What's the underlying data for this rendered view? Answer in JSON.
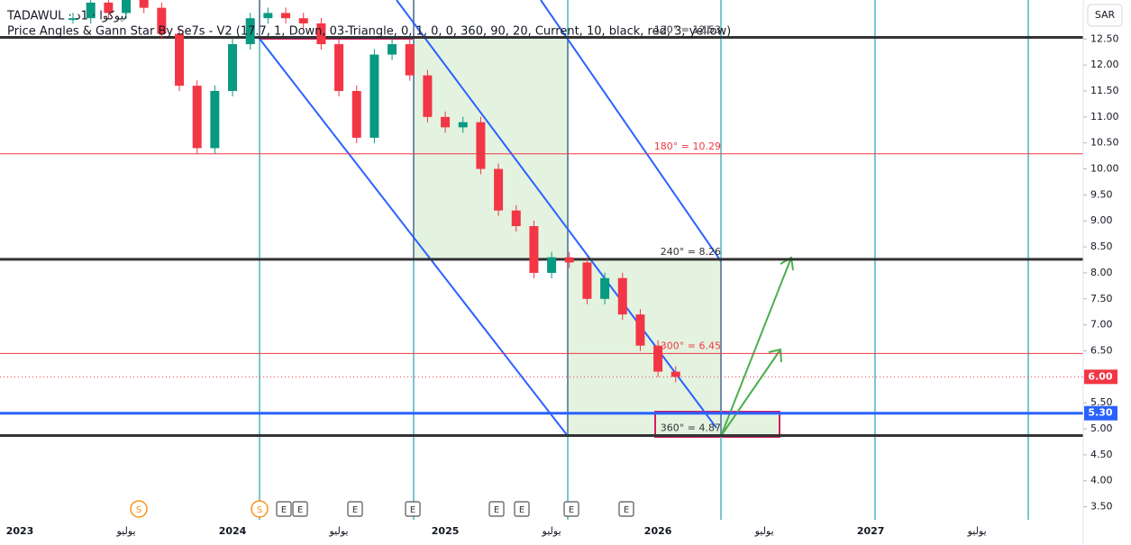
{
  "header": {
    "symbol": "TADAWUL · نيوكوا · 1د",
    "indicator": "Price Angles & Gann Star By Se7s - V2 (17.7, 1, Down, 03-Triangle, 0, 1, 0, 0, 360, 90, 20, Current, 10, black, red, 3, yellow)",
    "currency": "SAR"
  },
  "chart_data": {
    "type": "candlestick",
    "categories": [
      "2023",
      null,
      null,
      null,
      null,
      null,
      "يوليو",
      null,
      null,
      null,
      null,
      null,
      "2024",
      null,
      null,
      null,
      null,
      null,
      "يوليو",
      null,
      null,
      null,
      null,
      null,
      "2025",
      null,
      null,
      null,
      null,
      null,
      "يوليو",
      null,
      null,
      null,
      null,
      null,
      "2026",
      null,
      null,
      null,
      null,
      null,
      "يوليو",
      null,
      null,
      null,
      null,
      null,
      "2027",
      null,
      null,
      null,
      null,
      null,
      "يوليو",
      null,
      null,
      null,
      null,
      null
    ],
    "series": [
      {
        "name": "TADAWUL",
        "up_color": "#089981",
        "down_color": "#f23645",
        "values": [
          null,
          null,
          null,
          12.9,
          13.2,
          13.0,
          13.3,
          13.1,
          12.6,
          11.6,
          10.4,
          11.5,
          12.4,
          12.9,
          13.0,
          12.9,
          12.8,
          12.4,
          11.5,
          10.6,
          12.2,
          12.4,
          11.8,
          11.0,
          10.8,
          10.9,
          10.0,
          9.2,
          8.9,
          8.0,
          8.3,
          8.2,
          7.5,
          7.9,
          7.2,
          6.6,
          6.1,
          6.0,
          null,
          null,
          null,
          null,
          null,
          null,
          null,
          null,
          null,
          null,
          null,
          null,
          null,
          null,
          null,
          null,
          null,
          null,
          null,
          null,
          null,
          null
        ]
      }
    ],
    "ylim": [
      3.25,
      13.25
    ],
    "yticks": [
      {
        "value": 3.5,
        "label": "3.50"
      },
      {
        "value": 4,
        "label": "4.00"
      },
      {
        "value": 4.5,
        "label": "4.50"
      },
      {
        "value": 5,
        "label": "5.00"
      },
      {
        "value": 5.5,
        "label": "5.50"
      },
      {
        "value": 6,
        "label": "6.00"
      },
      {
        "value": 6.5,
        "label": "6.50"
      },
      {
        "value": 7,
        "label": "7.00"
      },
      {
        "value": 7.5,
        "label": "7.50"
      },
      {
        "value": 8,
        "label": "8.00"
      },
      {
        "value": 8.5,
        "label": "8.50"
      },
      {
        "value": 9,
        "label": "9.00"
      },
      {
        "value": 9.5,
        "label": "9.50"
      },
      {
        "value": 10,
        "label": "10.00"
      },
      {
        "value": 10.5,
        "label": "10.50"
      },
      {
        "value": 11,
        "label": "11.00"
      },
      {
        "value": 11.5,
        "label": "11.50"
      },
      {
        "value": 12,
        "label": "12.00"
      },
      {
        "value": 12.5,
        "label": "12.50"
      }
    ],
    "levels": [
      {
        "value": 12.53,
        "label": "120° = 12.53",
        "color": "#333333",
        "width": 3
      },
      {
        "value": 10.29,
        "label": "180° = 10.29",
        "color": "#f23645",
        "width": 1
      },
      {
        "value": 8.26,
        "label": "240° = 8.26",
        "color": "#333333",
        "width": 3
      },
      {
        "value": 6.45,
        "label": "300° = 6.45",
        "color": "#f23645",
        "width": 1
      },
      {
        "value": 4.87,
        "label": "360° = 4.87",
        "color": "#333333",
        "width": 3
      },
      {
        "value": 5.3,
        "color": "#2962ff",
        "width": 3
      }
    ],
    "price_badges": [
      {
        "value": 6,
        "label": "6.00",
        "color": "#f23645"
      },
      {
        "value": 5.3,
        "label": "5.30",
        "color": "#2962ff"
      }
    ],
    "events": [
      "S",
      "S",
      "E",
      "E",
      "E",
      "E",
      "E",
      "E",
      "E",
      "E"
    ]
  }
}
